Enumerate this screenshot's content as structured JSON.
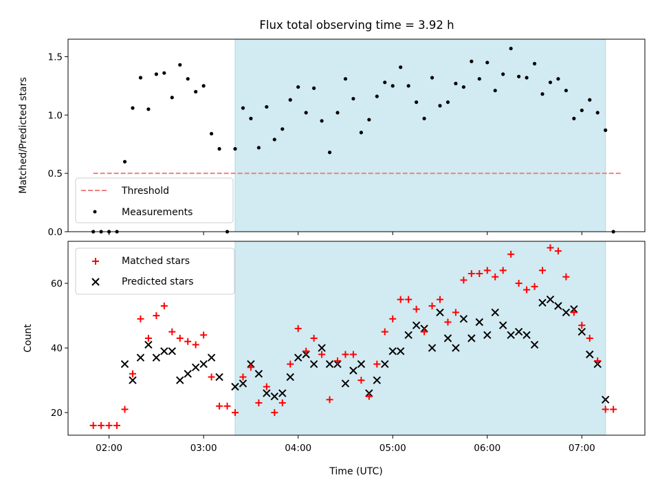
{
  "colors": {
    "shade": "#add8e6",
    "threshold": "#f08080",
    "measurement": "#000000",
    "matched": "#ff0000",
    "predicted": "#000000"
  },
  "chart_data": [
    {
      "type": "scatter",
      "title": "Flux total observing time = 3.92 h",
      "xlabel": "",
      "ylabel": "Matched/Predicted stars",
      "xlim": [
        "01:34",
        "07:40"
      ],
      "ylim": [
        0,
        1.65
      ],
      "yticks": [
        0.0,
        0.5,
        1.0,
        1.5
      ],
      "ytick_labels": [
        "0.0",
        "0.5",
        "1.0",
        "1.5"
      ],
      "grid": false,
      "legend_position": "lower-left",
      "shaded_region": {
        "x_start": "03:20",
        "x_end": "07:15"
      },
      "threshold": {
        "name": "Threshold",
        "y": 0.5,
        "x_start": "01:50",
        "x_end": "07:25",
        "style": "dashed"
      },
      "series": [
        {
          "name": "Measurements",
          "marker": "dot",
          "points": [
            [
              "01:50",
              0.0
            ],
            [
              "01:55",
              0.0
            ],
            [
              "02:00",
              0.0
            ],
            [
              "02:05",
              0.0
            ],
            [
              "02:10",
              0.6
            ],
            [
              "02:15",
              1.06
            ],
            [
              "02:20",
              1.32
            ],
            [
              "02:25",
              1.05
            ],
            [
              "02:30",
              1.35
            ],
            [
              "02:35",
              1.36
            ],
            [
              "02:40",
              1.15
            ],
            [
              "02:45",
              1.43
            ],
            [
              "02:50",
              1.31
            ],
            [
              "02:55",
              1.2
            ],
            [
              "03:00",
              1.25
            ],
            [
              "03:05",
              0.84
            ],
            [
              "03:10",
              0.71
            ],
            [
              "03:15",
              0.0
            ],
            [
              "03:20",
              0.71
            ],
            [
              "03:25",
              1.06
            ],
            [
              "03:30",
              0.97
            ],
            [
              "03:35",
              0.72
            ],
            [
              "03:40",
              1.07
            ],
            [
              "03:45",
              0.79
            ],
            [
              "03:50",
              0.88
            ],
            [
              "03:55",
              1.13
            ],
            [
              "04:00",
              1.24
            ],
            [
              "04:05",
              1.02
            ],
            [
              "04:10",
              1.23
            ],
            [
              "04:15",
              0.95
            ],
            [
              "04:20",
              0.68
            ],
            [
              "04:25",
              1.02
            ],
            [
              "04:30",
              1.31
            ],
            [
              "04:35",
              1.14
            ],
            [
              "04:40",
              0.85
            ],
            [
              "04:45",
              0.96
            ],
            [
              "04:50",
              1.16
            ],
            [
              "04:55",
              1.28
            ],
            [
              "05:00",
              1.25
            ],
            [
              "05:05",
              1.41
            ],
            [
              "05:10",
              1.25
            ],
            [
              "05:15",
              1.11
            ],
            [
              "05:20",
              0.97
            ],
            [
              "05:25",
              1.32
            ],
            [
              "05:30",
              1.08
            ],
            [
              "05:35",
              1.11
            ],
            [
              "05:40",
              1.27
            ],
            [
              "05:45",
              1.24
            ],
            [
              "05:50",
              1.46
            ],
            [
              "05:55",
              1.31
            ],
            [
              "06:00",
              1.45
            ],
            [
              "06:05",
              1.21
            ],
            [
              "06:10",
              1.35
            ],
            [
              "06:15",
              1.57
            ],
            [
              "06:20",
              1.33
            ],
            [
              "06:25",
              1.32
            ],
            [
              "06:30",
              1.44
            ],
            [
              "06:35",
              1.18
            ],
            [
              "06:40",
              1.28
            ],
            [
              "06:45",
              1.31
            ],
            [
              "06:50",
              1.21
            ],
            [
              "06:55",
              0.97
            ],
            [
              "07:00",
              1.04
            ],
            [
              "07:05",
              1.13
            ],
            [
              "07:10",
              1.02
            ],
            [
              "07:15",
              0.87
            ],
            [
              "07:20",
              0.0
            ]
          ]
        }
      ]
    },
    {
      "type": "scatter",
      "title": "",
      "xlabel": "Time (UTC)",
      "ylabel": "Count",
      "xlim": [
        "01:34",
        "07:40"
      ],
      "ylim": [
        13,
        73
      ],
      "xticks": [
        "02:00",
        "03:00",
        "04:00",
        "05:00",
        "06:00",
        "07:00"
      ],
      "xtick_labels": [
        "02:00",
        "03:00",
        "04:00",
        "05:00",
        "06:00",
        "07:00"
      ],
      "yticks": [
        20,
        40,
        60
      ],
      "ytick_labels": [
        "20",
        "40",
        "60"
      ],
      "grid": false,
      "legend_position": "upper-left",
      "shaded_region": {
        "x_start": "03:20",
        "x_end": "07:15"
      },
      "series": [
        {
          "name": "Matched stars",
          "marker": "plus",
          "points": [
            [
              "01:50",
              16
            ],
            [
              "01:55",
              16
            ],
            [
              "02:00",
              16
            ],
            [
              "02:05",
              16
            ],
            [
              "02:10",
              21
            ],
            [
              "02:15",
              32
            ],
            [
              "02:20",
              49
            ],
            [
              "02:25",
              43
            ],
            [
              "02:30",
              50
            ],
            [
              "02:35",
              53
            ],
            [
              "02:40",
              45
            ],
            [
              "02:45",
              43
            ],
            [
              "02:50",
              42
            ],
            [
              "02:55",
              41
            ],
            [
              "03:00",
              44
            ],
            [
              "03:05",
              31
            ],
            [
              "03:10",
              22
            ],
            [
              "03:15",
              22
            ],
            [
              "03:20",
              20
            ],
            [
              "03:25",
              31
            ],
            [
              "03:30",
              34
            ],
            [
              "03:35",
              23
            ],
            [
              "03:40",
              28
            ],
            [
              "03:45",
              20
            ],
            [
              "03:50",
              23
            ],
            [
              "03:55",
              35
            ],
            [
              "04:00",
              46
            ],
            [
              "04:05",
              39
            ],
            [
              "04:10",
              43
            ],
            [
              "04:15",
              38
            ],
            [
              "04:20",
              24
            ],
            [
              "04:25",
              36
            ],
            [
              "04:30",
              38
            ],
            [
              "04:35",
              38
            ],
            [
              "04:40",
              30
            ],
            [
              "04:45",
              25
            ],
            [
              "04:50",
              35
            ],
            [
              "04:55",
              45
            ],
            [
              "05:00",
              49
            ],
            [
              "05:05",
              55
            ],
            [
              "05:10",
              55
            ],
            [
              "05:15",
              52
            ],
            [
              "05:20",
              45
            ],
            [
              "05:25",
              53
            ],
            [
              "05:30",
              55
            ],
            [
              "05:35",
              48
            ],
            [
              "05:40",
              51
            ],
            [
              "05:45",
              61
            ],
            [
              "05:50",
              63
            ],
            [
              "05:55",
              63
            ],
            [
              "06:00",
              64
            ],
            [
              "06:05",
              62
            ],
            [
              "06:10",
              64
            ],
            [
              "06:15",
              69
            ],
            [
              "06:20",
              60
            ],
            [
              "06:25",
              58
            ],
            [
              "06:30",
              59
            ],
            [
              "06:35",
              64
            ],
            [
              "06:40",
              71
            ],
            [
              "06:45",
              70
            ],
            [
              "06:50",
              62
            ],
            [
              "06:55",
              51
            ],
            [
              "07:00",
              47
            ],
            [
              "07:05",
              43
            ],
            [
              "07:10",
              36
            ],
            [
              "07:15",
              21
            ],
            [
              "07:20",
              21
            ]
          ]
        },
        {
          "name": "Predicted stars",
          "marker": "x",
          "points": [
            [
              "02:10",
              35
            ],
            [
              "02:15",
              30
            ],
            [
              "02:20",
              37
            ],
            [
              "02:25",
              41
            ],
            [
              "02:30",
              37
            ],
            [
              "02:35",
              39
            ],
            [
              "02:40",
              39
            ],
            [
              "02:45",
              30
            ],
            [
              "02:50",
              32
            ],
            [
              "02:55",
              34
            ],
            [
              "03:00",
              35
            ],
            [
              "03:05",
              37
            ],
            [
              "03:10",
              31
            ],
            [
              "03:20",
              28
            ],
            [
              "03:25",
              29
            ],
            [
              "03:30",
              35
            ],
            [
              "03:35",
              32
            ],
            [
              "03:40",
              26
            ],
            [
              "03:45",
              25
            ],
            [
              "03:50",
              26
            ],
            [
              "03:55",
              31
            ],
            [
              "04:00",
              37
            ],
            [
              "04:05",
              38
            ],
            [
              "04:10",
              35
            ],
            [
              "04:15",
              40
            ],
            [
              "04:20",
              35
            ],
            [
              "04:25",
              35
            ],
            [
              "04:30",
              29
            ],
            [
              "04:35",
              33
            ],
            [
              "04:40",
              35
            ],
            [
              "04:45",
              26
            ],
            [
              "04:50",
              30
            ],
            [
              "04:55",
              35
            ],
            [
              "05:00",
              39
            ],
            [
              "05:05",
              39
            ],
            [
              "05:10",
              44
            ],
            [
              "05:15",
              47
            ],
            [
              "05:20",
              46
            ],
            [
              "05:25",
              40
            ],
            [
              "05:30",
              51
            ],
            [
              "05:35",
              43
            ],
            [
              "05:40",
              40
            ],
            [
              "05:45",
              49
            ],
            [
              "05:50",
              43
            ],
            [
              "05:55",
              48
            ],
            [
              "06:00",
              44
            ],
            [
              "06:05",
              51
            ],
            [
              "06:10",
              47
            ],
            [
              "06:15",
              44
            ],
            [
              "06:20",
              45
            ],
            [
              "06:25",
              44
            ],
            [
              "06:30",
              41
            ],
            [
              "06:35",
              54
            ],
            [
              "06:40",
              55
            ],
            [
              "06:45",
              53
            ],
            [
              "06:50",
              51
            ],
            [
              "06:55",
              52
            ],
            [
              "07:00",
              45
            ],
            [
              "07:05",
              38
            ],
            [
              "07:10",
              35
            ],
            [
              "07:15",
              24
            ]
          ]
        }
      ]
    }
  ]
}
